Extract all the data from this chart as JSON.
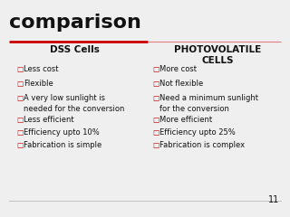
{
  "title": "comparison",
  "title_color": "#111111",
  "title_fontsize": 16,
  "col1_header": "DSS Cells",
  "col2_header": "PHOTOVOLATILE\nCELLS",
  "header_fontsize": 7.5,
  "col1_items": [
    "Less cost",
    "Flexible",
    "A very low sunlight is\nneeded for the conversion",
    "Less efficient",
    "Efficiency upto 10%",
    "Fabrication is simple"
  ],
  "col2_items": [
    "More cost",
    "Not flexible",
    "Need a minimum sunlight\nfor the conversion",
    "More efficient",
    "Efficiency upto 25%",
    "Fabrication is complex"
  ],
  "item_fontsize": 6.0,
  "bg_color": "#efefef",
  "text_color": "#111111",
  "line_color_left": "#cc0000",
  "line_color_right": "#e08080",
  "bullet_color": "#cc0000",
  "slide_number": "11"
}
